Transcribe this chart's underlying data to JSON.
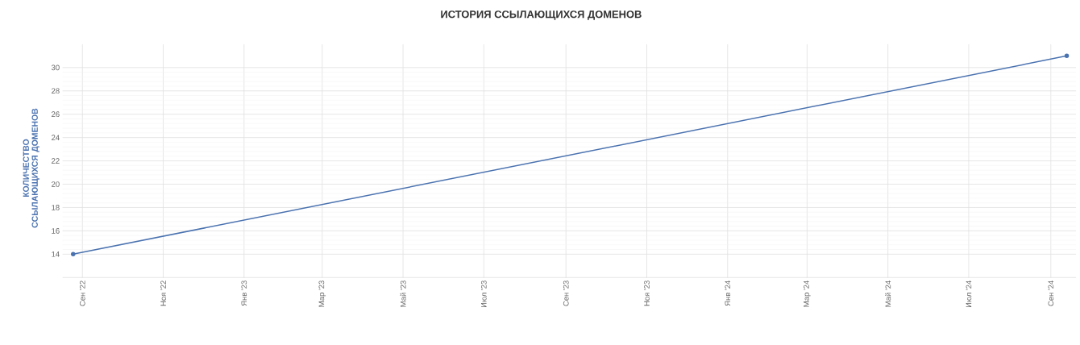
{
  "chart_data": {
    "type": "line",
    "title": "ИСТОРИЯ ССЫЛАЮЩИХСЯ ДОМЕНОВ",
    "ylabel": "КОЛИЧЕСТВО ССЫЛАЮЩИХСЯ ДОМЕНОВ",
    "x": [
      "2022-08-25",
      "2024-09-13"
    ],
    "series": [
      {
        "color": "#4a72b0",
        "values": [
          14,
          31
        ]
      }
    ],
    "xlim": [
      "2022-08-17",
      "2024-09-20"
    ],
    "xticks": [
      {
        "value": "2022-09-01",
        "label": "Сен '22"
      },
      {
        "value": "2022-11-01",
        "label": "Ноя '22"
      },
      {
        "value": "2023-01-01",
        "label": "Янв '23"
      },
      {
        "value": "2023-03-01",
        "label": "Мар '23"
      },
      {
        "value": "2023-05-01",
        "label": "Май '23"
      },
      {
        "value": "2023-07-01",
        "label": "Июл '23"
      },
      {
        "value": "2023-09-01",
        "label": "Сен '23"
      },
      {
        "value": "2023-11-01",
        "label": "Ноя '23"
      },
      {
        "value": "2024-01-01",
        "label": "Янв '24"
      },
      {
        "value": "2024-03-01",
        "label": "Мар '24"
      },
      {
        "value": "2024-05-01",
        "label": "Май '24"
      },
      {
        "value": "2024-07-01",
        "label": "Июл '24"
      },
      {
        "value": "2024-09-01",
        "label": "Сен '24"
      }
    ],
    "ylim": [
      12,
      32
    ],
    "yticks": [
      14,
      16,
      18,
      20,
      22,
      24,
      26,
      28,
      30
    ],
    "grid": true,
    "marker": "circle",
    "line_style": "solid"
  }
}
